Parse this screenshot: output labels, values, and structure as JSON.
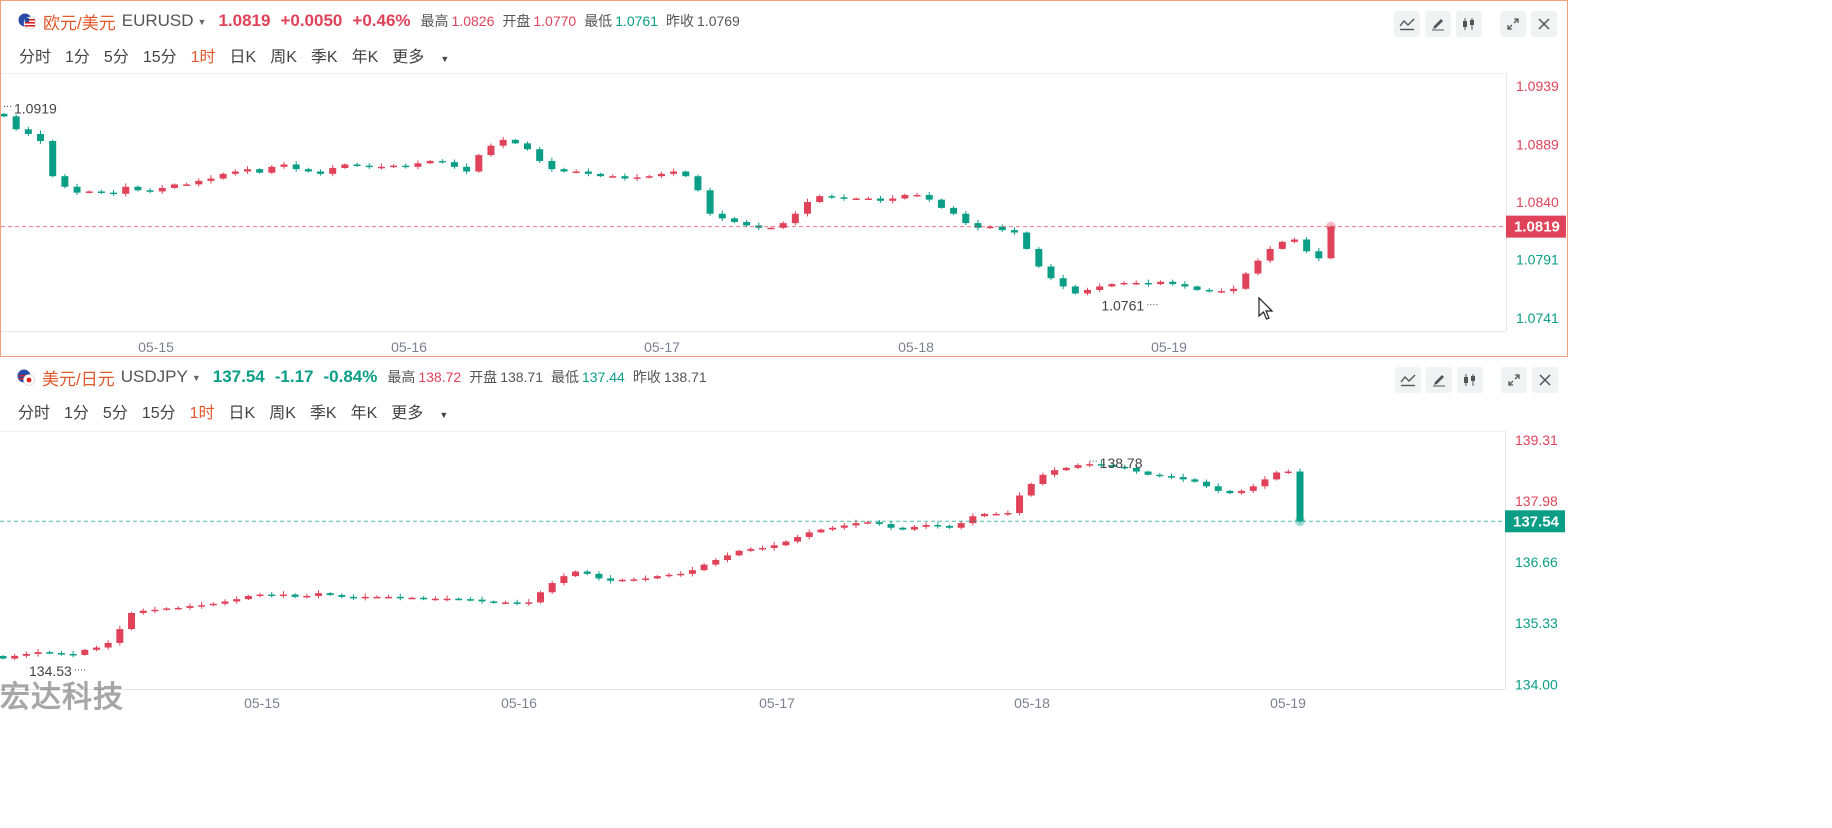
{
  "panels": [
    {
      "id": "eurusd",
      "pair_cn": "欧元/美元",
      "pair_code": "EURUSD",
      "price": "1.0819",
      "change": "+0.0050",
      "change_pct": "+0.46%",
      "direction": "up",
      "stats": {
        "high_label": "最高",
        "high": "1.0826",
        "open_label": "开盘",
        "open": "1.0770",
        "low_label": "最低",
        "low": "1.0761",
        "prev_label": "昨收",
        "prev": "1.0769"
      },
      "timeframes": [
        "分时",
        "1分",
        "5分",
        "15分",
        "1时",
        "日K",
        "周K",
        "季K",
        "年K",
        "更多"
      ],
      "active_timeframe": "1时",
      "tool_icons": [
        "indicator-icon",
        "draw-pen-icon",
        "candle-type-icon",
        "expand-icon",
        "close-icon"
      ]
    },
    {
      "id": "usdjpy",
      "pair_cn": "美元/日元",
      "pair_code": "USDJPY",
      "price": "137.54",
      "change": "-1.17",
      "change_pct": "-0.84%",
      "direction": "down",
      "stats": {
        "high_label": "最高",
        "high": "138.72",
        "open_label": "开盘",
        "open": "138.71",
        "low_label": "最低",
        "low": "137.44",
        "prev_label": "昨收",
        "prev": "138.71"
      },
      "timeframes": [
        "分时",
        "1分",
        "5分",
        "15分",
        "1时",
        "日K",
        "周K",
        "季K",
        "年K",
        "更多"
      ],
      "active_timeframe": "1时",
      "tool_icons": [
        "indicator-icon",
        "draw-pen-icon",
        "candle-type-icon",
        "expand-icon",
        "close-icon"
      ]
    }
  ],
  "colors": {
    "up": "#e04359",
    "down": "#0a9e86",
    "accent": "#e2582a",
    "border": "#f0a07a"
  },
  "watermark": "宏达科技",
  "chart_data": [
    {
      "type": "candlestick",
      "symbol": "EURUSD",
      "interval": "1h",
      "x_tick_labels": [
        "05-15",
        "05-16",
        "05-17",
        "05-18",
        "05-19"
      ],
      "y_tick_labels": [
        "1.0939",
        "1.0889",
        "1.0840",
        "1.0819",
        "1.0791",
        "1.0741"
      ],
      "ylim": [
        1.073,
        1.095
      ],
      "current_price": 1.0819,
      "annotations": {
        "high_marker": "1.0919",
        "low_marker": "1.0761"
      },
      "close_series": [
        1.0913,
        1.0902,
        1.0898,
        1.0892,
        1.0862,
        1.0853,
        1.0848,
        1.0849,
        1.0848,
        1.0847,
        1.0853,
        1.085,
        1.0849,
        1.0852,
        1.0855,
        1.0855,
        1.0858,
        1.086,
        1.0864,
        1.0866,
        1.0868,
        1.0865,
        1.087,
        1.0872,
        1.0868,
        1.0866,
        1.0864,
        1.0869,
        1.0872,
        1.0871,
        1.087,
        1.087,
        1.0871,
        1.087,
        1.0873,
        1.0875,
        1.0874,
        1.087,
        1.0866,
        1.088,
        1.0888,
        1.0893,
        1.089,
        1.0885,
        1.0875,
        1.0868,
        1.0866,
        1.0866,
        1.0864,
        1.0862,
        1.0862,
        1.086,
        1.0861,
        1.0862,
        1.0864,
        1.0866,
        1.0862,
        1.085,
        1.083,
        1.0826,
        1.0823,
        1.082,
        1.0818,
        1.0818,
        1.0822,
        1.083,
        1.084,
        1.0845,
        1.0844,
        1.0843,
        1.0843,
        1.0843,
        1.0841,
        1.0843,
        1.0846,
        1.0846,
        1.0842,
        1.0835,
        1.083,
        1.0822,
        1.0818,
        1.0819,
        1.0816,
        1.0814,
        1.08,
        1.0785,
        1.0775,
        1.0768,
        1.0762,
        1.0765,
        1.0768,
        1.077,
        1.0771,
        1.0771,
        1.077,
        1.0772,
        1.077,
        1.0768,
        1.0765,
        1.0764,
        1.0764,
        1.0766,
        1.0779,
        1.079,
        1.08,
        1.0806,
        1.0808,
        1.0798,
        1.0792,
        1.0819
      ]
    },
    {
      "type": "candlestick",
      "symbol": "USDJPY",
      "interval": "1h",
      "x_tick_labels": [
        "05-15",
        "05-16",
        "05-17",
        "05-18",
        "05-19"
      ],
      "y_tick_labels": [
        "139.31",
        "137.98",
        "137.54",
        "136.66",
        "135.33",
        "134.00"
      ],
      "ylim": [
        133.9,
        139.5
      ],
      "current_price": 137.54,
      "annotations": {
        "high_marker": "138.78",
        "low_marker": "134.53"
      },
      "close_series": [
        134.56,
        134.62,
        134.66,
        134.7,
        134.68,
        134.66,
        134.64,
        134.75,
        134.8,
        134.9,
        135.2,
        135.55,
        135.6,
        135.62,
        135.65,
        135.66,
        135.7,
        135.72,
        135.75,
        135.8,
        135.85,
        135.92,
        135.95,
        135.93,
        135.95,
        135.9,
        135.92,
        135.98,
        135.94,
        135.9,
        135.88,
        135.9,
        135.9,
        135.9,
        135.88,
        135.88,
        135.86,
        135.86,
        135.86,
        135.85,
        135.84,
        135.8,
        135.77,
        135.78,
        135.76,
        135.78,
        136.0,
        136.2,
        136.35,
        136.45,
        136.4,
        136.3,
        136.25,
        136.27,
        136.28,
        136.3,
        136.35,
        136.38,
        136.4,
        136.48,
        136.6,
        136.7,
        136.8,
        136.9,
        136.94,
        136.96,
        137.02,
        137.1,
        137.2,
        137.3,
        137.36,
        137.4,
        137.45,
        137.5,
        137.52,
        137.48,
        137.4,
        137.36,
        137.42,
        137.46,
        137.44,
        137.4,
        137.5,
        137.65,
        137.7,
        137.7,
        137.72,
        138.1,
        138.35,
        138.55,
        138.65,
        138.7,
        138.76,
        138.78,
        138.76,
        138.72,
        138.7,
        138.62,
        138.55,
        138.52,
        138.5,
        138.45,
        138.4,
        138.3,
        138.2,
        138.15,
        138.2,
        138.3,
        138.45,
        138.6,
        138.62,
        137.54
      ]
    }
  ]
}
